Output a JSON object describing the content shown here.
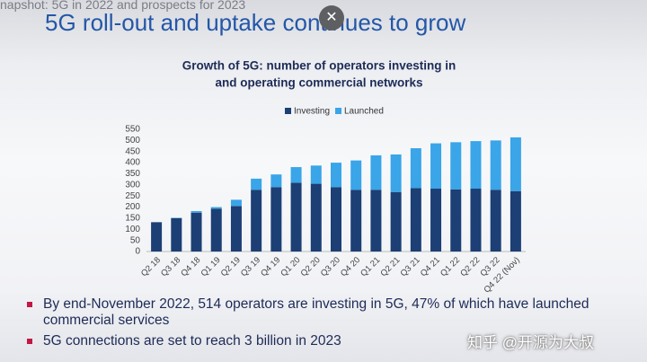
{
  "overlay_title": "napshot: 5G in 2022 and prospects for 2023",
  "slide_title": "5G roll-out and uptake continues to grow",
  "close_icon": "✕",
  "chart_data": {
    "type": "bar",
    "stacked": true,
    "title": [
      "Growth of 5G: number of operators investing in",
      "and operating commercial networks"
    ],
    "categories": [
      "Q2 18",
      "Q3 18",
      "Q4 18",
      "Q1 19",
      "Q2 19",
      "Q3 19",
      "Q4 19",
      "Q1 20",
      "Q2 20",
      "Q3 20",
      "Q4 20",
      "Q1 21",
      "Q2 21",
      "Q3 21",
      "Q4 21",
      "Q1 22",
      "Q2 22",
      "Q3 22",
      "Q4 22 (Nov)"
    ],
    "series": [
      {
        "name": "Investing",
        "color": "#1c3f75",
        "values": [
          132,
          150,
          175,
          193,
          205,
          278,
          290,
          310,
          305,
          290,
          278,
          278,
          268,
          285,
          283,
          280,
          283,
          278,
          272
        ]
      },
      {
        "name": "Launched",
        "color": "#3aa5e8",
        "values": [
          0,
          2,
          7,
          7,
          28,
          50,
          57,
          70,
          82,
          110,
          132,
          155,
          169,
          180,
          204,
          212,
          214,
          222,
          242
        ]
      }
    ],
    "ylim": [
      0,
      550
    ],
    "yticks": [
      0,
      50,
      100,
      150,
      200,
      250,
      300,
      350,
      400,
      450,
      500,
      550
    ],
    "legend": "top"
  },
  "bullets": [
    "By end-November 2022, 514 operators are investing in 5G, 47% of which have launched commercial services",
    "5G connections are set to reach 3 billion in 2023"
  ],
  "watermark": "知乎 @开源为大叔"
}
